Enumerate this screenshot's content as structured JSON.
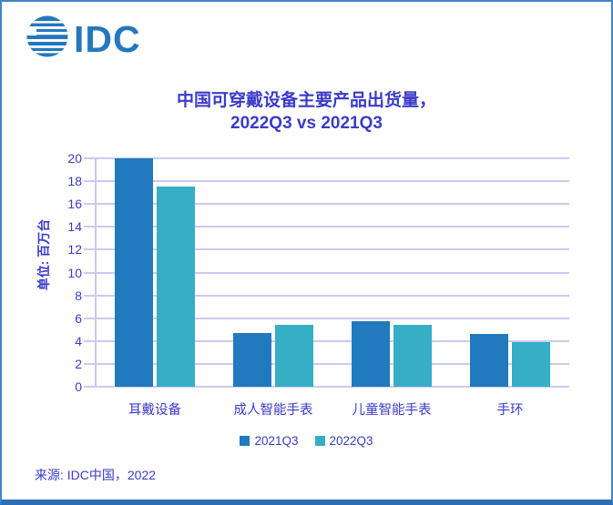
{
  "logo": {
    "text": "IDC"
  },
  "title": {
    "line1": "中国可穿戴设备主要产品出货量，",
    "line2": "2022Q3 vs 2021Q3"
  },
  "source": "来源:  IDC中国，2022",
  "colors": {
    "logo_blue": "#2478BE",
    "text_blue": "#3B3BC8",
    "gridline": "#C9CBF2",
    "frame_border": "#4484C8",
    "frame_border_bottom": "#2D6DB3",
    "series_2021Q3": "#2179BE",
    "series_2022Q3": "#36AEC6"
  },
  "chart_data": {
    "type": "bar",
    "categories": [
      "耳戴设备",
      "成人智能手表",
      "儿童智能手表",
      "手环"
    ],
    "series": [
      {
        "name": "2021Q3",
        "color": "#2179BE",
        "values": [
          20.0,
          4.7,
          5.7,
          4.6
        ]
      },
      {
        "name": "2022Q3",
        "color": "#36AEC6",
        "values": [
          17.5,
          5.4,
          5.4,
          3.9
        ]
      }
    ],
    "title": "中国可穿戴设备主要产品出货量，2022Q3 vs 2021Q3",
    "xlabel": "",
    "ylabel": "单位: 百万台",
    "ylim": [
      0,
      20
    ],
    "y_tick_step": 2,
    "grid": true,
    "legend_position": "bottom"
  }
}
